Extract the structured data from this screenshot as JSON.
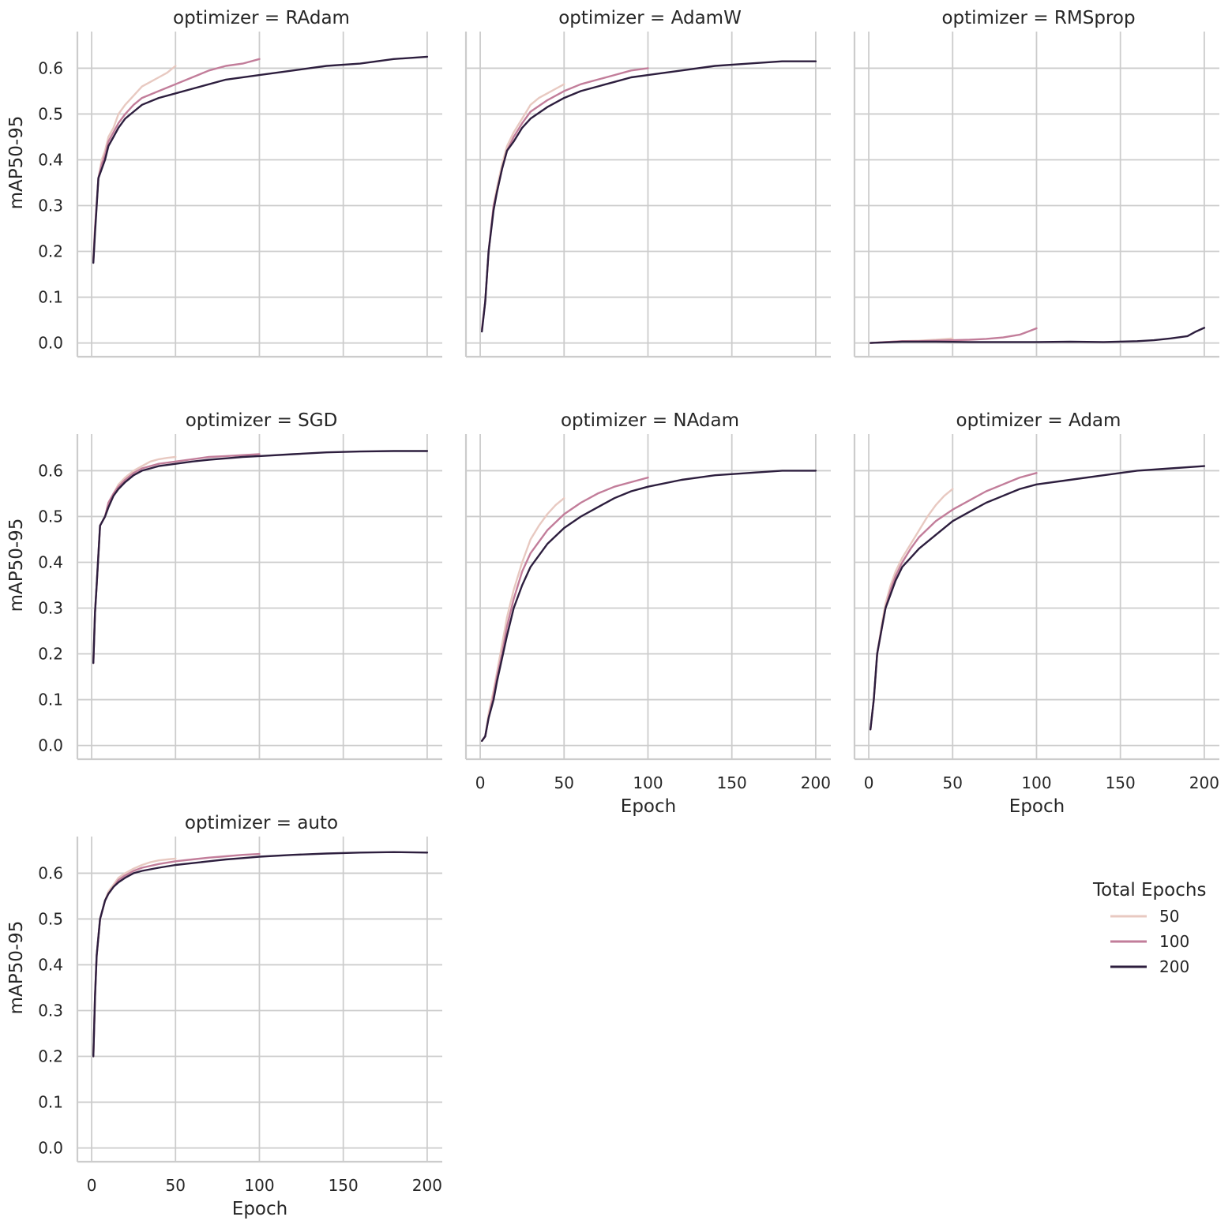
{
  "figure": {
    "legend": {
      "title": "Total Epochs",
      "entries": [
        {
          "label": "50",
          "color": "#e8c9c1"
        },
        {
          "label": "100",
          "color": "#c27d9a"
        },
        {
          "label": "200",
          "color": "#2d1e3e"
        }
      ]
    }
  },
  "chart_data": [
    {
      "type": "line",
      "title": "optimizer = RAdam",
      "xlabel": "Epoch",
      "ylabel": "mAP50-95",
      "xlim": [
        0,
        200
      ],
      "ylim": [
        -0.03,
        0.68
      ],
      "xticks": [
        0,
        50,
        100,
        150,
        200
      ],
      "yticks": [
        0.0,
        0.1,
        0.2,
        0.3,
        0.4,
        0.5,
        0.6
      ],
      "series": [
        {
          "name": "50",
          "x": [
            1,
            2,
            4,
            6,
            8,
            10,
            13,
            16,
            20,
            25,
            30,
            35,
            40,
            45,
            50
          ],
          "y": [
            0.18,
            0.25,
            0.36,
            0.4,
            0.42,
            0.45,
            0.47,
            0.5,
            0.52,
            0.54,
            0.56,
            0.57,
            0.58,
            0.59,
            0.605
          ]
        },
        {
          "name": "100",
          "x": [
            1,
            2,
            4,
            6,
            8,
            10,
            13,
            16,
            20,
            25,
            30,
            40,
            50,
            60,
            70,
            80,
            90,
            100
          ],
          "y": [
            0.18,
            0.25,
            0.36,
            0.39,
            0.41,
            0.44,
            0.46,
            0.48,
            0.5,
            0.52,
            0.535,
            0.55,
            0.565,
            0.58,
            0.595,
            0.605,
            0.61,
            0.62
          ]
        },
        {
          "name": "200",
          "x": [
            1,
            2,
            4,
            6,
            8,
            10,
            13,
            16,
            20,
            25,
            30,
            40,
            50,
            60,
            80,
            100,
            120,
            140,
            160,
            180,
            200
          ],
          "y": [
            0.175,
            0.24,
            0.36,
            0.38,
            0.4,
            0.43,
            0.45,
            0.47,
            0.49,
            0.505,
            0.52,
            0.535,
            0.545,
            0.555,
            0.575,
            0.585,
            0.595,
            0.605,
            0.61,
            0.62,
            0.625
          ]
        }
      ]
    },
    {
      "type": "line",
      "title": "optimizer = AdamW",
      "xlabel": "Epoch",
      "ylabel": "mAP50-95",
      "xlim": [
        0,
        200
      ],
      "ylim": [
        -0.03,
        0.68
      ],
      "xticks": [
        0,
        50,
        100,
        150,
        200
      ],
      "yticks": [
        0.0,
        0.1,
        0.2,
        0.3,
        0.4,
        0.5,
        0.6
      ],
      "series": [
        {
          "name": "50",
          "x": [
            1,
            3,
            5,
            8,
            10,
            13,
            16,
            20,
            25,
            30,
            35,
            40,
            45,
            50
          ],
          "y": [
            0.03,
            0.09,
            0.2,
            0.3,
            0.34,
            0.39,
            0.43,
            0.46,
            0.49,
            0.52,
            0.535,
            0.545,
            0.555,
            0.565
          ]
        },
        {
          "name": "100",
          "x": [
            1,
            3,
            5,
            8,
            10,
            13,
            16,
            20,
            25,
            30,
            40,
            50,
            60,
            70,
            80,
            90,
            100
          ],
          "y": [
            0.03,
            0.09,
            0.2,
            0.3,
            0.33,
            0.38,
            0.42,
            0.45,
            0.48,
            0.505,
            0.53,
            0.55,
            0.565,
            0.575,
            0.585,
            0.595,
            0.6
          ]
        },
        {
          "name": "200",
          "x": [
            1,
            3,
            5,
            8,
            10,
            13,
            16,
            20,
            25,
            30,
            40,
            50,
            60,
            70,
            80,
            90,
            100,
            120,
            140,
            160,
            180,
            200
          ],
          "y": [
            0.025,
            0.09,
            0.2,
            0.29,
            0.33,
            0.38,
            0.42,
            0.44,
            0.47,
            0.49,
            0.515,
            0.535,
            0.55,
            0.56,
            0.57,
            0.58,
            0.585,
            0.595,
            0.605,
            0.61,
            0.615,
            0.615
          ]
        }
      ]
    },
    {
      "type": "line",
      "title": "optimizer = RMSprop",
      "xlabel": "Epoch",
      "ylabel": "mAP50-95",
      "xlim": [
        0,
        200
      ],
      "ylim": [
        -0.03,
        0.68
      ],
      "xticks": [
        0,
        50,
        100,
        150,
        200
      ],
      "yticks": [
        0.0,
        0.1,
        0.2,
        0.3,
        0.4,
        0.5,
        0.6
      ],
      "series": [
        {
          "name": "50",
          "x": [
            1,
            10,
            20,
            30,
            40,
            50
          ],
          "y": [
            0.0,
            0.002,
            0.004,
            0.005,
            0.007,
            0.01
          ]
        },
        {
          "name": "100",
          "x": [
            1,
            10,
            20,
            30,
            40,
            50,
            60,
            70,
            80,
            90,
            95,
            100
          ],
          "y": [
            0.0,
            0.002,
            0.004,
            0.004,
            0.005,
            0.006,
            0.007,
            0.009,
            0.012,
            0.018,
            0.025,
            0.032
          ]
        },
        {
          "name": "200",
          "x": [
            1,
            20,
            40,
            60,
            80,
            100,
            120,
            140,
            160,
            170,
            180,
            190,
            195,
            200
          ],
          "y": [
            0.0,
            0.003,
            0.003,
            0.002,
            0.002,
            0.002,
            0.003,
            0.002,
            0.004,
            0.006,
            0.01,
            0.015,
            0.025,
            0.033
          ]
        }
      ]
    },
    {
      "type": "line",
      "title": "optimizer = SGD",
      "xlabel": "Epoch",
      "ylabel": "mAP50-95",
      "xlim": [
        0,
        200
      ],
      "ylim": [
        -0.03,
        0.68
      ],
      "xticks": [
        0,
        50,
        100,
        150,
        200
      ],
      "yticks": [
        0.0,
        0.1,
        0.2,
        0.3,
        0.4,
        0.5,
        0.6
      ],
      "series": [
        {
          "name": "50",
          "x": [
            1,
            2,
            3,
            5,
            8,
            10,
            13,
            16,
            20,
            25,
            30,
            35,
            40,
            45,
            50
          ],
          "y": [
            0.18,
            0.29,
            0.35,
            0.48,
            0.5,
            0.53,
            0.55,
            0.57,
            0.585,
            0.6,
            0.61,
            0.62,
            0.625,
            0.628,
            0.63
          ]
        },
        {
          "name": "100",
          "x": [
            1,
            2,
            3,
            5,
            8,
            10,
            13,
            16,
            20,
            25,
            30,
            40,
            50,
            60,
            70,
            80,
            90,
            100
          ],
          "y": [
            0.18,
            0.29,
            0.35,
            0.48,
            0.5,
            0.53,
            0.55,
            0.565,
            0.58,
            0.595,
            0.605,
            0.615,
            0.62,
            0.625,
            0.63,
            0.632,
            0.634,
            0.636
          ]
        },
        {
          "name": "200",
          "x": [
            1,
            2,
            3,
            5,
            8,
            10,
            13,
            16,
            20,
            25,
            30,
            40,
            50,
            60,
            70,
            80,
            90,
            100,
            120,
            140,
            160,
            180,
            200
          ],
          "y": [
            0.18,
            0.29,
            0.35,
            0.48,
            0.5,
            0.52,
            0.545,
            0.56,
            0.575,
            0.59,
            0.6,
            0.61,
            0.615,
            0.62,
            0.624,
            0.627,
            0.63,
            0.632,
            0.636,
            0.64,
            0.642,
            0.643,
            0.643
          ]
        }
      ]
    },
    {
      "type": "line",
      "title": "optimizer = NAdam",
      "xlabel": "Epoch",
      "ylabel": "mAP50-95",
      "xlim": [
        0,
        200
      ],
      "ylim": [
        -0.03,
        0.68
      ],
      "xticks": [
        0,
        50,
        100,
        150,
        200
      ],
      "yticks": [
        0.0,
        0.1,
        0.2,
        0.3,
        0.4,
        0.5,
        0.6
      ],
      "series": [
        {
          "name": "50",
          "x": [
            1,
            3,
            5,
            8,
            10,
            13,
            16,
            20,
            25,
            30,
            35,
            40,
            45,
            50
          ],
          "y": [
            0.01,
            0.02,
            0.07,
            0.12,
            0.16,
            0.22,
            0.28,
            0.34,
            0.4,
            0.45,
            0.48,
            0.505,
            0.525,
            0.54
          ]
        },
        {
          "name": "100",
          "x": [
            1,
            3,
            5,
            8,
            10,
            13,
            16,
            20,
            25,
            30,
            40,
            50,
            60,
            70,
            80,
            90,
            100
          ],
          "y": [
            0.01,
            0.02,
            0.06,
            0.11,
            0.15,
            0.2,
            0.26,
            0.32,
            0.38,
            0.42,
            0.47,
            0.505,
            0.53,
            0.55,
            0.565,
            0.575,
            0.585
          ]
        },
        {
          "name": "200",
          "x": [
            1,
            3,
            5,
            8,
            10,
            13,
            16,
            20,
            25,
            30,
            40,
            50,
            60,
            70,
            80,
            90,
            100,
            120,
            140,
            160,
            180,
            200
          ],
          "y": [
            0.01,
            0.02,
            0.06,
            0.1,
            0.14,
            0.19,
            0.24,
            0.3,
            0.35,
            0.39,
            0.44,
            0.475,
            0.5,
            0.52,
            0.54,
            0.555,
            0.565,
            0.58,
            0.59,
            0.595,
            0.6,
            0.6
          ]
        }
      ]
    },
    {
      "type": "line",
      "title": "optimizer = Adam",
      "xlabel": "Epoch",
      "ylabel": "mAP50-95",
      "xlim": [
        0,
        200
      ],
      "ylim": [
        -0.03,
        0.68
      ],
      "xticks": [
        0,
        50,
        100,
        150,
        200
      ],
      "yticks": [
        0.0,
        0.1,
        0.2,
        0.3,
        0.4,
        0.5,
        0.6
      ],
      "series": [
        {
          "name": "50",
          "x": [
            1,
            3,
            5,
            8,
            10,
            13,
            16,
            20,
            25,
            30,
            35,
            40,
            45,
            50
          ],
          "y": [
            0.035,
            0.1,
            0.2,
            0.27,
            0.31,
            0.35,
            0.38,
            0.41,
            0.44,
            0.47,
            0.5,
            0.525,
            0.545,
            0.56
          ]
        },
        {
          "name": "100",
          "x": [
            1,
            3,
            5,
            8,
            10,
            13,
            16,
            20,
            25,
            30,
            40,
            50,
            60,
            70,
            80,
            90,
            100
          ],
          "y": [
            0.035,
            0.1,
            0.2,
            0.26,
            0.3,
            0.34,
            0.37,
            0.4,
            0.43,
            0.455,
            0.49,
            0.515,
            0.535,
            0.555,
            0.57,
            0.585,
            0.595
          ]
        },
        {
          "name": "200",
          "x": [
            1,
            3,
            5,
            8,
            10,
            13,
            16,
            20,
            25,
            30,
            40,
            50,
            60,
            70,
            80,
            90,
            100,
            120,
            140,
            160,
            180,
            200
          ],
          "y": [
            0.035,
            0.1,
            0.2,
            0.26,
            0.3,
            0.33,
            0.36,
            0.39,
            0.41,
            0.43,
            0.46,
            0.49,
            0.51,
            0.53,
            0.545,
            0.56,
            0.57,
            0.58,
            0.59,
            0.6,
            0.605,
            0.61
          ]
        }
      ]
    },
    {
      "type": "line",
      "title": "optimizer = auto",
      "xlabel": "Epoch",
      "ylabel": "mAP50-95",
      "xlim": [
        0,
        200
      ],
      "ylim": [
        -0.03,
        0.68
      ],
      "xticks": [
        0,
        50,
        100,
        150,
        200
      ],
      "yticks": [
        0.0,
        0.1,
        0.2,
        0.3,
        0.4,
        0.5,
        0.6
      ],
      "series": [
        {
          "name": "50",
          "x": [
            1,
            2,
            3,
            5,
            8,
            10,
            13,
            16,
            20,
            25,
            30,
            35,
            40,
            45,
            50
          ],
          "y": [
            0.2,
            0.33,
            0.42,
            0.5,
            0.54,
            0.56,
            0.575,
            0.59,
            0.6,
            0.61,
            0.618,
            0.624,
            0.628,
            0.63,
            0.632
          ]
        },
        {
          "name": "100",
          "x": [
            1,
            2,
            3,
            5,
            8,
            10,
            13,
            16,
            20,
            25,
            30,
            40,
            50,
            60,
            70,
            80,
            90,
            100
          ],
          "y": [
            0.2,
            0.33,
            0.42,
            0.5,
            0.54,
            0.555,
            0.57,
            0.585,
            0.595,
            0.605,
            0.612,
            0.62,
            0.626,
            0.63,
            0.634,
            0.637,
            0.64,
            0.642
          ]
        },
        {
          "name": "200",
          "x": [
            1,
            2,
            3,
            5,
            8,
            10,
            13,
            16,
            20,
            25,
            30,
            40,
            50,
            60,
            70,
            80,
            90,
            100,
            120,
            140,
            160,
            180,
            200
          ],
          "y": [
            0.2,
            0.33,
            0.42,
            0.5,
            0.54,
            0.555,
            0.57,
            0.58,
            0.59,
            0.6,
            0.605,
            0.612,
            0.618,
            0.622,
            0.626,
            0.63,
            0.633,
            0.636,
            0.64,
            0.643,
            0.645,
            0.646,
            0.645
          ]
        }
      ]
    }
  ]
}
